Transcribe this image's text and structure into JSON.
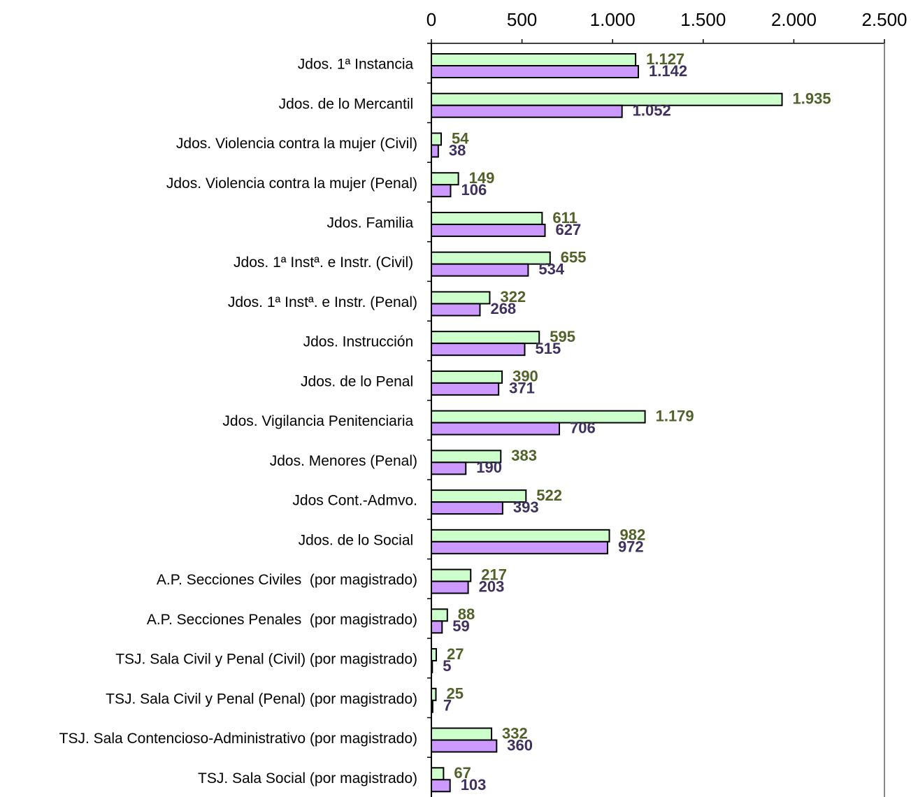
{
  "chart_data": {
    "type": "barh",
    "categories": [
      "Jdos. 1ª Instancia ",
      "Jdos. de lo Mercantil ",
      "Jdos. Violencia contra la mujer (Civil)",
      "Jdos. Violencia contra la mujer (Penal)",
      "Jdos. Familia ",
      "Jdos. 1ª Instª. e Instr. (Civil) ",
      "Jdos. 1ª Instª. e Instr. (Penal)",
      "Jdos. Instrucción ",
      "Jdos. de lo Penal ",
      "Jdos. Vigilancia Penitenciaria ",
      "Jdos. Menores (Penal)",
      "Jdos Cont.-Admvo.",
      "Jdos. de lo Social ",
      "A.P. Secciones Civiles  (por magistrado)",
      "A.P. Secciones Penales  (por magistrado)",
      "TSJ. Sala Civil y Penal (Civil) (por magistrado)",
      "TSJ. Sala Civil y Penal (Penal) (por magistrado)",
      "TSJ. Sala Contencioso-Administrativo (por magistrado)",
      "TSJ. Sala Social (por magistrado)"
    ],
    "series": [
      {
        "color": "#ccffcc",
        "label_color": "#4f6228",
        "values": [
          1127,
          1935,
          54,
          149,
          611,
          655,
          322,
          595,
          390,
          1179,
          383,
          522,
          982,
          217,
          88,
          27,
          25,
          332,
          67
        ],
        "value_labels": [
          "1.127",
          "1.935",
          "54",
          "149",
          "611",
          "655",
          "322",
          "595",
          "390",
          "1.179",
          "383",
          "522",
          "982",
          "217",
          "88",
          "27",
          "25",
          "332",
          "67"
        ]
      },
      {
        "color": "#cc99ff",
        "label_color": "#403060",
        "values": [
          1142,
          1052,
          38,
          106,
          627,
          534,
          268,
          515,
          371,
          706,
          190,
          393,
          972,
          203,
          59,
          5,
          7,
          360,
          103
        ],
        "value_labels": [
          "1.142",
          "1.052",
          "38",
          "106",
          "627",
          "534",
          "268",
          "515",
          "371",
          "706",
          "190",
          "393",
          "972",
          "203",
          "59",
          "5",
          "7",
          "360",
          "103"
        ]
      }
    ],
    "xlim": [
      0,
      2500
    ],
    "xticks": [
      0,
      500,
      {
        "value": 1000,
        "label": "1.000"
      },
      {
        "value": 1500,
        "label": "1.500"
      },
      {
        "value": 2000,
        "label": "2.000"
      },
      {
        "value": 2500,
        "label": "2.500"
      }
    ]
  }
}
